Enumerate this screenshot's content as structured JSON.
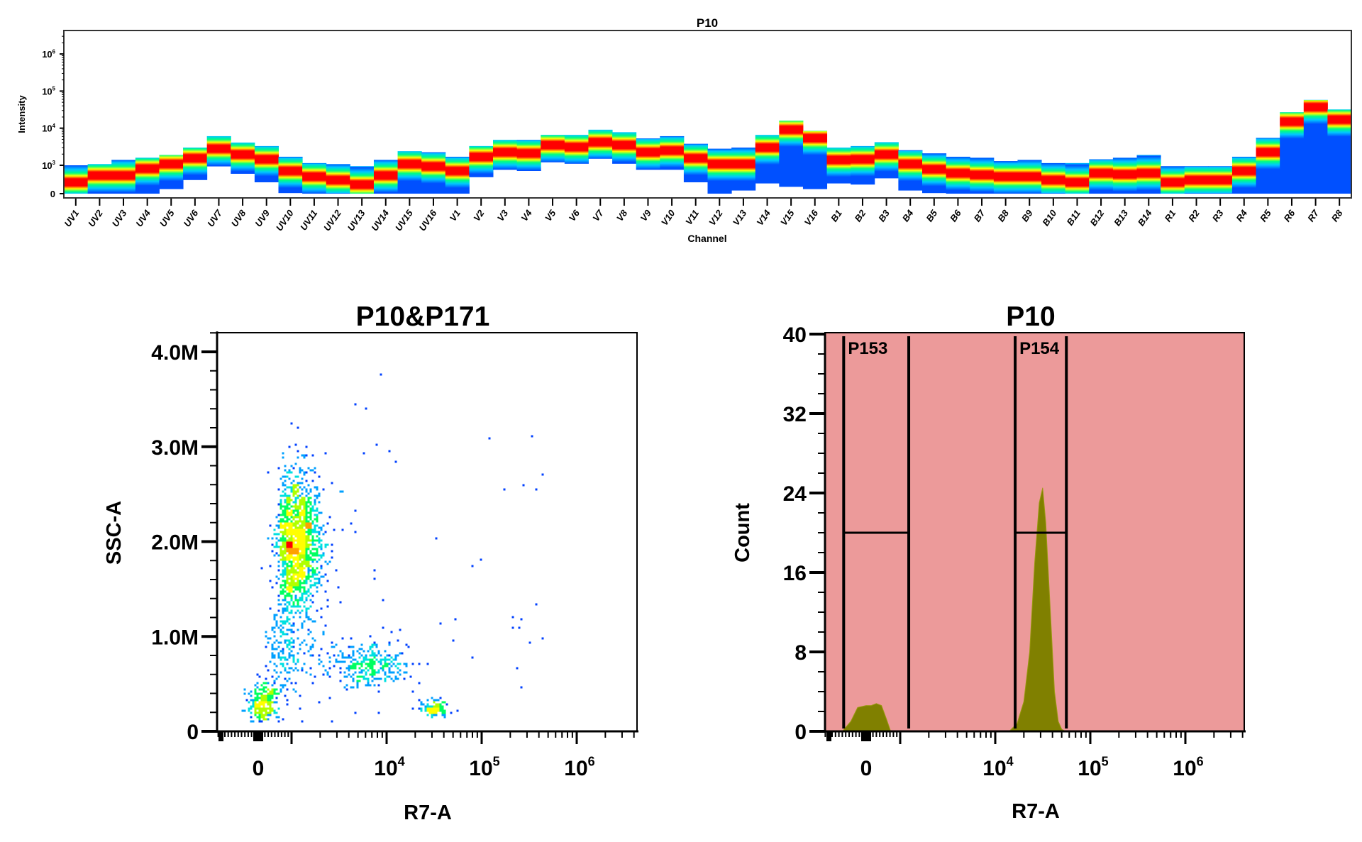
{
  "chart_data": [
    {
      "type": "heatmap",
      "title": "P10",
      "xlabel": "Channel",
      "ylabel": "Intensity",
      "yscale": "log",
      "y_tick_labels": [
        {
          "base": "10",
          "exp": "6",
          "value": 1000000
        },
        {
          "base": "10",
          "exp": "5",
          "value": 100000
        },
        {
          "base": "10",
          "exp": "4",
          "value": 10000
        },
        {
          "base": "10",
          "exp": "3",
          "value": 1000
        },
        {
          "base": "0",
          "exp": "",
          "value": 0
        }
      ],
      "colormap": [
        "#0050ff",
        "#00c8ff",
        "#00ff80",
        "#ffff00",
        "#ff0000"
      ],
      "channels": [
        {
          "name": "UV1",
          "top": 1000,
          "bottom": 0,
          "peak": 400
        },
        {
          "name": "UV2",
          "top": 1080,
          "bottom": 0,
          "peak": 640
        },
        {
          "name": "UV3",
          "top": 1400,
          "bottom": 0,
          "peak": 640
        },
        {
          "name": "UV4",
          "top": 1600,
          "bottom": 0,
          "peak": 880
        },
        {
          "name": "UV5",
          "top": 1900,
          "bottom": 160,
          "peak": 1080
        },
        {
          "name": "UV6",
          "top": 3000,
          "bottom": 480,
          "peak": 1550
        },
        {
          "name": "UV7",
          "top": 6100,
          "bottom": 960,
          "peak": 2800
        },
        {
          "name": "UV8",
          "top": 4100,
          "bottom": 700,
          "peak": 1950
        },
        {
          "name": "UV9",
          "top": 3300,
          "bottom": 400,
          "peak": 1450
        },
        {
          "name": "UV10",
          "top": 1700,
          "bottom": 20,
          "peak": 800
        },
        {
          "name": "UV11",
          "top": 1150,
          "bottom": 0,
          "peak": 600
        },
        {
          "name": "UV12",
          "top": 1080,
          "bottom": 0,
          "peak": 480
        },
        {
          "name": "UV13",
          "top": 970,
          "bottom": 0,
          "peak": 320
        },
        {
          "name": "UV14",
          "top": 1400,
          "bottom": 0,
          "peak": 640
        },
        {
          "name": "UV15",
          "top": 2400,
          "bottom": 0,
          "peak": 1080
        },
        {
          "name": "UV16",
          "top": 2250,
          "bottom": 0,
          "peak": 960
        },
        {
          "name": "V1",
          "top": 1700,
          "bottom": 0,
          "peak": 800
        },
        {
          "name": "V2",
          "top": 3300,
          "bottom": 580,
          "peak": 1680
        },
        {
          "name": "V3",
          "top": 4850,
          "bottom": 840,
          "peak": 2250
        },
        {
          "name": "V4",
          "top": 4850,
          "bottom": 800,
          "peak": 2100
        },
        {
          "name": "V5",
          "top": 6600,
          "bottom": 1200,
          "peak": 3500
        },
        {
          "name": "V6",
          "top": 6600,
          "bottom": 1100,
          "peak": 3100
        },
        {
          "name": "V7",
          "top": 9100,
          "bottom": 1500,
          "peak": 4200
        },
        {
          "name": "V8",
          "top": 7800,
          "bottom": 1100,
          "peak": 3500
        },
        {
          "name": "V9",
          "top": 5300,
          "bottom": 840,
          "peak": 2250
        },
        {
          "name": "V10",
          "top": 6100,
          "bottom": 840,
          "peak": 2500
        },
        {
          "name": "V11",
          "top": 3800,
          "bottom": 400,
          "peak": 1550
        },
        {
          "name": "V12",
          "top": 2800,
          "bottom": 0,
          "peak": 1080
        },
        {
          "name": "V13",
          "top": 3000,
          "bottom": 110,
          "peak": 1080
        },
        {
          "name": "V14",
          "top": 6600,
          "bottom": 360,
          "peak": 3000
        },
        {
          "name": "V15",
          "top": 16000,
          "bottom": 240,
          "peak": 9100
        },
        {
          "name": "V16",
          "top": 8500,
          "bottom": 160,
          "peak": 5400
        },
        {
          "name": "B1",
          "top": 3000,
          "bottom": 360,
          "peak": 1400
        },
        {
          "name": "B2",
          "top": 3300,
          "bottom": 320,
          "peak": 1450
        },
        {
          "name": "B3",
          "top": 4200,
          "bottom": 540,
          "peak": 1950
        },
        {
          "name": "B4",
          "top": 2550,
          "bottom": 110,
          "peak": 1080
        },
        {
          "name": "B5",
          "top": 2100,
          "bottom": 20,
          "peak": 860
        },
        {
          "name": "B6",
          "top": 1700,
          "bottom": 0,
          "peak": 720
        },
        {
          "name": "B7",
          "top": 1600,
          "bottom": 0,
          "peak": 660
        },
        {
          "name": "B8",
          "top": 1300,
          "bottom": 0,
          "peak": 600
        },
        {
          "name": "B9",
          "top": 1400,
          "bottom": 0,
          "peak": 600
        },
        {
          "name": "B10",
          "top": 1150,
          "bottom": 0,
          "peak": 480
        },
        {
          "name": "B11",
          "top": 1150,
          "bottom": 0,
          "peak": 400
        },
        {
          "name": "B12",
          "top": 1450,
          "bottom": 0,
          "peak": 720
        },
        {
          "name": "B13",
          "top": 1600,
          "bottom": 0,
          "peak": 680
        },
        {
          "name": "B14",
          "top": 1900,
          "bottom": 0,
          "peak": 720
        },
        {
          "name": "R1",
          "top": 970,
          "bottom": 0,
          "peak": 400
        },
        {
          "name": "R2",
          "top": 970,
          "bottom": 0,
          "peak": 480
        },
        {
          "name": "R3",
          "top": 970,
          "bottom": 0,
          "peak": 480
        },
        {
          "name": "R4",
          "top": 1700,
          "bottom": 0,
          "peak": 800
        },
        {
          "name": "R5",
          "top": 5500,
          "bottom": 0,
          "peak": 2250
        },
        {
          "name": "R6",
          "top": 27000,
          "bottom": 0,
          "peak": 15000
        },
        {
          "name": "R7",
          "top": 58000,
          "bottom": 0,
          "peak": 37000
        },
        {
          "name": "R8",
          "top": 32000,
          "bottom": 0,
          "peak": 17000
        }
      ]
    },
    {
      "type": "scatter",
      "title": "P10&P171",
      "xlabel": "R7-A",
      "ylabel": "SSC-A",
      "xscale": "biexponential",
      "xlim": [
        -1200,
        4200000
      ],
      "ylim": [
        0,
        4200000
      ],
      "x_tick_labels": [
        {
          "base": "0",
          "exp": "",
          "value": 0
        },
        {
          "base": "10",
          "exp": "4",
          "value": 10000
        },
        {
          "base": "10",
          "exp": "5",
          "value": 100000
        },
        {
          "base": "10",
          "exp": "6",
          "value": 1000000
        }
      ],
      "y_tick_labels": [
        {
          "label": "4.0M",
          "value": 4000000
        },
        {
          "label": "3.0M",
          "value": 3000000
        },
        {
          "label": "2.0M",
          "value": 2000000
        },
        {
          "label": "1.0M",
          "value": 1000000
        },
        {
          "label": "0",
          "value": 0
        }
      ],
      "coloring": "density",
      "populations": [
        {
          "r7a_center": 1150,
          "r7a_log_sd": 0.13,
          "ssc_center": 2000000,
          "ssc_sd": 380000,
          "count": 1500
        },
        {
          "r7a_center": 800,
          "r7a_log_sd": 0.2,
          "ssc_center": 900000,
          "ssc_sd": 300000,
          "count": 220
        },
        {
          "r7a_center": 150,
          "r7a_sd": 220,
          "ssc_center": 300000,
          "ssc_sd": 110000,
          "count": 260
        },
        {
          "r7a_center": 6300,
          "r7a_log_sd": 0.2,
          "ssc_center": 700000,
          "ssc_sd": 120000,
          "count": 300
        },
        {
          "r7a_center": 32000,
          "r7a_log_sd": 0.07,
          "ssc_center": 230000,
          "ssc_sd": 40000,
          "count": 110
        },
        {
          "r7a_range": [
            1000,
            600000
          ],
          "ssc_range": [
            100000,
            3800000
          ],
          "count": 55
        }
      ]
    },
    {
      "type": "area",
      "title": "P10",
      "xlabel": "R7-A",
      "ylabel": "Count",
      "xscale": "biexponential",
      "xlim": [
        -1200,
        4200000
      ],
      "ylim": [
        0,
        40
      ],
      "background": "#ec9a9a",
      "fill": "#808000",
      "x_tick_labels": [
        {
          "base": "0",
          "exp": "",
          "value": 0
        },
        {
          "base": "10",
          "exp": "4",
          "value": 10000
        },
        {
          "base": "10",
          "exp": "5",
          "value": 100000
        },
        {
          "base": "10",
          "exp": "6",
          "value": 1000000
        }
      ],
      "y_tick_labels": [
        {
          "label": "40",
          "value": 40
        },
        {
          "label": "32",
          "value": 32
        },
        {
          "label": "24",
          "value": 24
        },
        {
          "label": "16",
          "value": 16
        },
        {
          "label": "8",
          "value": 8
        },
        {
          "label": "0",
          "value": 0
        }
      ],
      "series": [
        {
          "x": [
            -700,
            -450,
            -250,
            0,
            150,
            300,
            450,
            600,
            720
          ],
          "y": [
            0,
            1,
            2.4,
            2.6,
            2.6,
            2.8,
            2.6,
            1.2,
            0
          ]
        },
        {
          "x": [
            14000,
            17000,
            20000,
            23000,
            26000,
            29000,
            31500,
            34000,
            38000,
            42000,
            46000,
            50000,
            55000
          ],
          "y": [
            0,
            0.8,
            3,
            8,
            17,
            23,
            24.5,
            21,
            12,
            4,
            1,
            0.2,
            0
          ]
        }
      ],
      "gates": [
        {
          "name": "P153",
          "x_range": [
            -660,
            1230
          ],
          "level": 20
        },
        {
          "name": "P154",
          "x_range": [
            16200,
            56000
          ],
          "level": 20
        }
      ]
    }
  ]
}
